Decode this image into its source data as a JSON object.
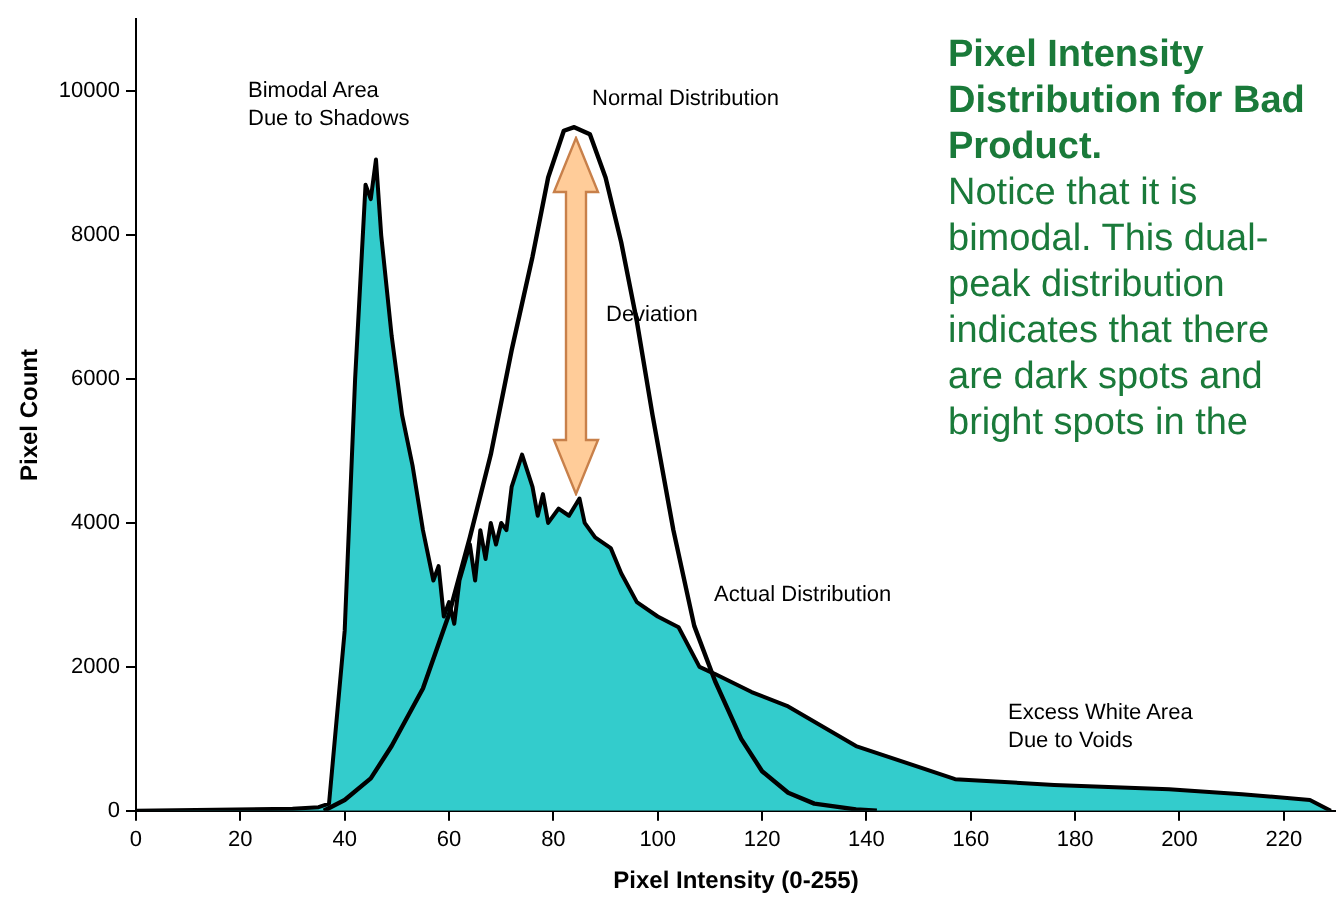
{
  "chart_data": {
    "type": "area",
    "title": "Pixel Intensity Distribution for Bad Product.",
    "subtitle": "Notice that it is bimodal. This dual-peak distribution indicates that there are dark spots and bright spots in the",
    "xlabel": "Pixel Intensity (0-255)",
    "ylabel": "Pixel Count",
    "xlim": [
      0,
      230
    ],
    "ylim": [
      0,
      11000
    ],
    "xticks": [
      0,
      20,
      40,
      60,
      80,
      100,
      120,
      140,
      160,
      180,
      200,
      220
    ],
    "yticks": [
      0,
      2000,
      4000,
      6000,
      8000,
      10000
    ],
    "grid": false,
    "legend": false,
    "marker": "none",
    "annotations": [
      "Bimodal Area\nDue to Shadows",
      "Normal Distribution",
      "Deviation",
      "Actual Distribution",
      "Excess White Area\nDue to Voids"
    ],
    "series": [
      {
        "color": "#33cccc",
        "x": [
          0,
          30,
          35,
          37,
          40,
          42,
          44,
          45,
          46,
          47,
          49,
          51,
          53,
          55,
          57,
          58,
          59,
          60,
          61,
          62,
          64,
          65,
          66,
          67,
          68,
          69,
          70,
          71,
          72,
          74,
          76,
          77,
          78,
          79,
          81,
          83,
          85,
          86,
          88,
          91,
          93,
          96,
          100,
          104,
          108,
          111,
          118,
          125,
          138,
          157,
          176,
          198,
          212,
          225,
          229
        ],
        "values": [
          0,
          30,
          50,
          100,
          2500,
          6000,
          8700,
          8500,
          9050,
          8000,
          6600,
          5500,
          4800,
          3900,
          3200,
          3400,
          2700,
          2900,
          2600,
          3200,
          3700,
          3200,
          3900,
          3500,
          4000,
          3700,
          4000,
          3900,
          4500,
          4950,
          4500,
          4100,
          4400,
          4000,
          4200,
          4100,
          4340,
          4000,
          3800,
          3650,
          3300,
          2900,
          2700,
          2550,
          2000,
          1900,
          1650,
          1450,
          900,
          440,
          360,
          300,
          230,
          150,
          0
        ]
      },
      {
        "type": "line",
        "color": "#000000",
        "x": [
          36,
          40,
          45,
          49,
          55,
          60,
          64,
          68,
          72,
          76,
          79,
          82,
          84,
          87,
          90,
          93,
          96,
          99,
          103,
          107,
          111,
          116,
          120,
          125,
          130,
          138,
          142
        ],
        "values": [
          0,
          150,
          450,
          900,
          1700,
          2730,
          3800,
          4950,
          6400,
          7700,
          8800,
          9450,
          9500,
          9400,
          8800,
          7900,
          6800,
          5500,
          3900,
          2570,
          1800,
          1000,
          550,
          250,
          100,
          20,
          0
        ]
      }
    ]
  }
}
